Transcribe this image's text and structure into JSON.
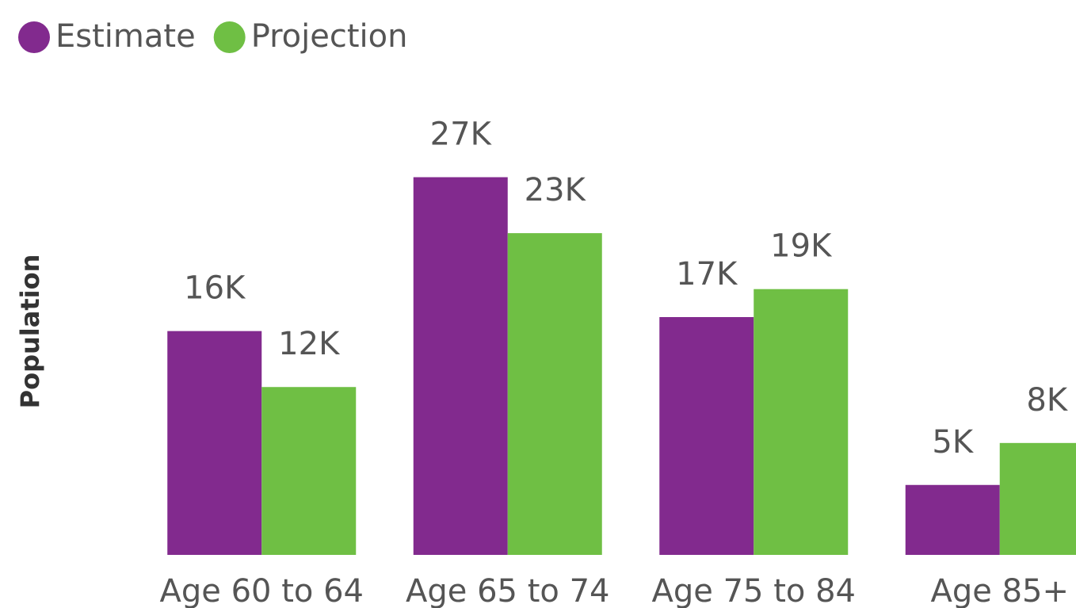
{
  "chart_data": {
    "type": "bar",
    "y_axis_label": "Population",
    "categories": [
      "Age 60 to 64",
      "Age 65 to 74",
      "Age 75 to 84",
      "Age 85+"
    ],
    "series": [
      {
        "name": "Estimate",
        "color": "#822a8e",
        "values": [
          16000,
          27000,
          17000,
          5000
        ],
        "value_labels": [
          "16K",
          "27K",
          "17K",
          "5K"
        ]
      },
      {
        "name": "Projection",
        "color": "#6fbf44",
        "values": [
          12000,
          23000,
          19000,
          8000
        ],
        "value_labels": [
          "12K",
          "23K",
          "19K",
          "8K"
        ]
      }
    ],
    "ylim": [
      0,
      34000
    ],
    "grid": false,
    "legend": "top-left"
  }
}
